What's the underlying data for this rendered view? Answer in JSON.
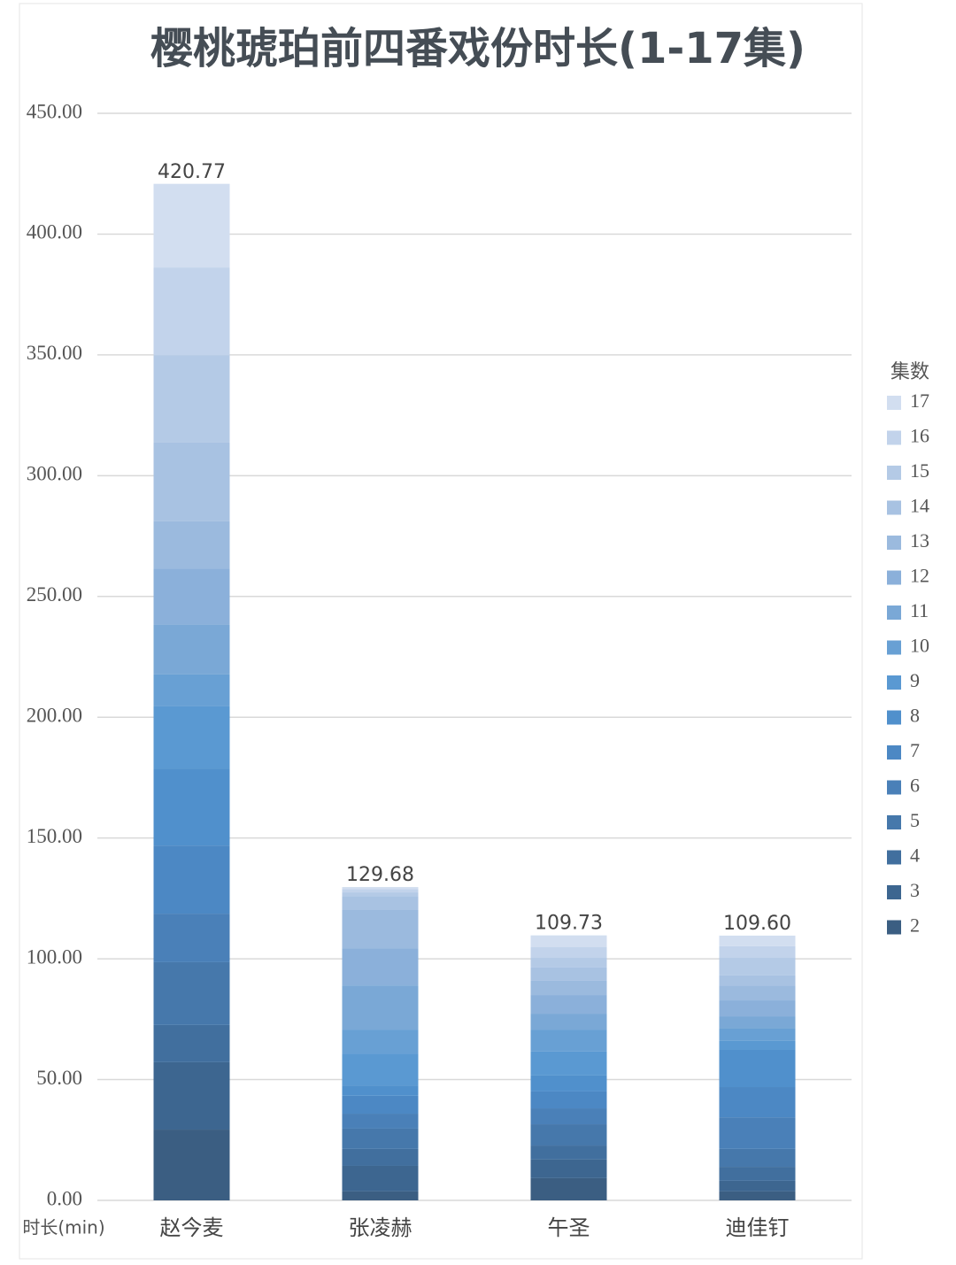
{
  "chart_data": {
    "type": "stacked_bar",
    "title": "樱桃琥珀前四番戏份时长(1-17集)",
    "y_axis_label": "时长(min)",
    "legend_title": "集数",
    "legend_position": "right",
    "grid": true,
    "categories": [
      "赵今麦",
      "张凌赫",
      "午圣",
      "迪佳钉"
    ],
    "totals": [
      420.77,
      129.68,
      109.73,
      109.6
    ],
    "value_labels": [
      "420.77",
      "129.68",
      "109.73",
      "109.60"
    ],
    "ylim": [
      0,
      450
    ],
    "yticks": [
      {
        "value": 0,
        "label": "0.00"
      },
      {
        "value": 50,
        "label": "50.00"
      },
      {
        "value": 100,
        "label": "100.00"
      },
      {
        "value": 150,
        "label": "150.00"
      },
      {
        "value": 200,
        "label": "200.00"
      },
      {
        "value": 250,
        "label": "250.00"
      },
      {
        "value": 300,
        "label": "300.00"
      },
      {
        "value": 350,
        "label": "350.00"
      },
      {
        "value": 400,
        "label": "400.00"
      },
      {
        "value": 450,
        "label": "450.00"
      }
    ],
    "series": [
      {
        "name": "2",
        "color": "#3b5e82",
        "values": [
          29.3,
          3.7,
          9.2,
          3.7
        ]
      },
      {
        "name": "3",
        "color": "#3d6690",
        "values": [
          27.9,
          10.6,
          7.7,
          4.4
        ]
      },
      {
        "name": "4",
        "color": "#416f9e",
        "values": [
          15.4,
          7.0,
          5.8,
          5.8
        ]
      },
      {
        "name": "5",
        "color": "#4678ab",
        "values": [
          26.0,
          8.4,
          8.8,
          7.4
        ]
      },
      {
        "name": "6",
        "color": "#4a80b8",
        "values": [
          20.1,
          6.2,
          6.6,
          13.1
        ]
      },
      {
        "name": "7",
        "color": "#4c88c4",
        "values": [
          28.2,
          7.4,
          7.0,
          12.5
        ]
      },
      {
        "name": "8",
        "color": "#5090cc",
        "values": [
          31.9,
          4.3,
          6.6,
          15.4
        ]
      },
      {
        "name": "9",
        "color": "#5a99d2",
        "values": [
          25.7,
          13.2,
          9.9,
          3.7
        ]
      },
      {
        "name": "10",
        "color": "#68a0d4",
        "values": [
          13.2,
          9.9,
          9.1,
          5.1
        ]
      },
      {
        "name": "11",
        "color": "#7aa8d6",
        "values": [
          20.5,
          18.3,
          6.6,
          5.1
        ]
      },
      {
        "name": "12",
        "color": "#8bb0da",
        "values": [
          23.4,
          15.4,
          7.7,
          6.6
        ]
      },
      {
        "name": "13",
        "color": "#9bbade",
        "values": [
          19.5,
          15.8,
          5.9,
          6.2
        ]
      },
      {
        "name": "14",
        "color": "#a8c2e2",
        "values": [
          32.6,
          5.8,
          5.5,
          4.1
        ]
      },
      {
        "name": "15",
        "color": "#b4cae6",
        "values": [
          36.2,
          1.5,
          4.0,
          7.3
        ]
      },
      {
        "name": "16",
        "color": "#c2d3eb",
        "values": [
          36.3,
          1.3,
          4.4,
          4.8
        ]
      },
      {
        "name": "17",
        "color": "#d2def0",
        "values": [
          34.6,
          0.9,
          4.9,
          4.4
        ]
      }
    ]
  }
}
